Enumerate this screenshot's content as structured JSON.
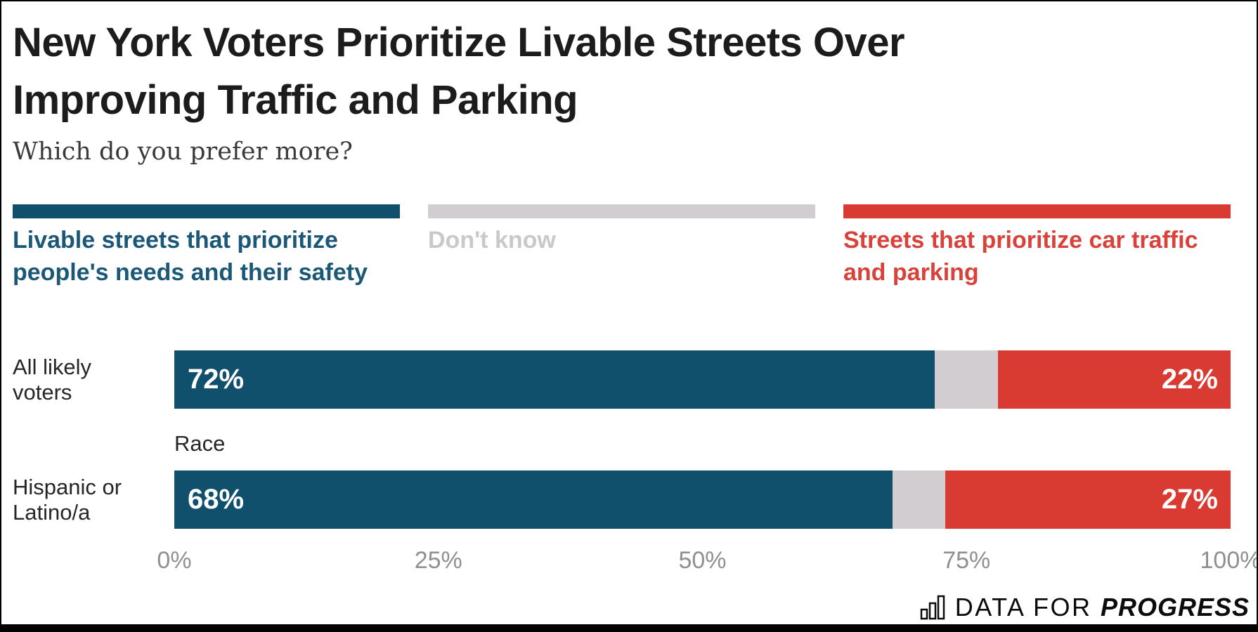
{
  "title": {
    "lines": [
      "New York Voters Prioritize Livable Streets Over",
      "Improving Traffic and Parking"
    ]
  },
  "subtitle": "Which do you prefer more?",
  "colors": {
    "livable": "#11506C",
    "livable_text": "#1B5878",
    "dont_know": "#D1CDD1",
    "dont_know_text": "#CBC7CB",
    "car": "#D93A32",
    "car_text": "#D9423B",
    "title_text": "#1C1C1C",
    "subtitle_text": "#3A3A3A",
    "row_label_text": "#262626",
    "axis_text": "#909090"
  },
  "legend": {
    "items": [
      {
        "name": "livable-streets",
        "color": "#11506C",
        "text_color": "#1B5878",
        "lines": [
          "Livable streets that prioritize",
          "people's needs and their safety"
        ]
      },
      {
        "name": "dont-know",
        "color": "#D1CDD1",
        "text_color": "#CBC7CB",
        "lines": [
          "Don't know"
        ]
      },
      {
        "name": "car-traffic",
        "color": "#D93A32",
        "text_color": "#D9423B",
        "lines": [
          "Streets that prioritize car traffic",
          "and parking"
        ]
      }
    ]
  },
  "chart_data": {
    "type": "bar",
    "orientation": "horizontal",
    "stacked": true,
    "title": "New York Voters Prioritize Livable Streets Over Improving Traffic and Parking",
    "subtitle": "Which do you prefer more?",
    "categories": [
      "All likely voters",
      "Hispanic or Latino/a"
    ],
    "categories_lines": [
      [
        "All likely",
        "voters"
      ],
      [
        "Hispanic or",
        "Latino/a"
      ]
    ],
    "row_group_label": "Race",
    "series": [
      {
        "name": "Livable streets that prioritize people's needs and their safety",
        "color": "#11506C",
        "values": [
          72,
          68
        ]
      },
      {
        "name": "Don't know",
        "color": "#D1CDD1",
        "values": [
          6,
          5
        ]
      },
      {
        "name": "Streets that prioritize car traffic and parking",
        "color": "#D93A32",
        "values": [
          22,
          27
        ]
      }
    ],
    "value_labels": [
      [
        "72%",
        "22%"
      ],
      [
        "68%",
        "27%"
      ]
    ],
    "xlim": [
      0,
      100
    ],
    "grid": false,
    "legend_position": "top",
    "x_ticks": [
      {
        "label": "0%",
        "value": 0
      },
      {
        "label": "25%",
        "value": 25
      },
      {
        "label": "50%",
        "value": 50
      },
      {
        "label": "75%",
        "value": 75
      },
      {
        "label": "100%",
        "value": 100
      }
    ]
  },
  "footer": {
    "logo_prefix": "DATA FOR ",
    "logo_suffix": "PROGRESS",
    "icon": "bar-chart-icon"
  }
}
